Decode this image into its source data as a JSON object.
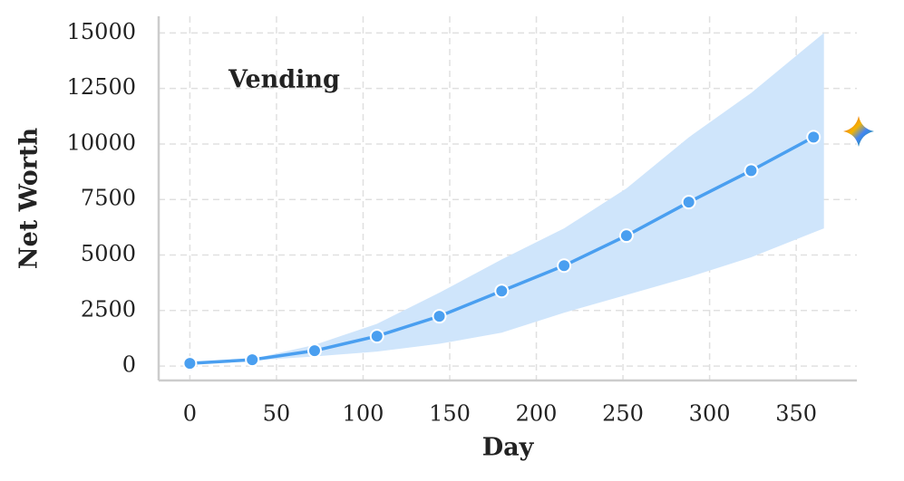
{
  "chart_data": {
    "type": "line",
    "annotation": "Vending",
    "xlabel": "Day",
    "ylabel": "Net Worth",
    "x": [
      0,
      36,
      72,
      108,
      144,
      180,
      216,
      252,
      288,
      324,
      360
    ],
    "series": [
      {
        "color": "#4a9ff0",
        "values": [
          120,
          285,
          690,
          1345,
          2240,
          3380,
          4520,
          5870,
          7380,
          8800,
          10310
        ]
      }
    ],
    "band": {
      "color": "#cfe5fb",
      "x": [
        0,
        36,
        72,
        108,
        144,
        180,
        216,
        252,
        288,
        324,
        366
      ],
      "upper": [
        120,
        320,
        950,
        1900,
        3300,
        4800,
        6200,
        8000,
        10300,
        12300,
        15000
      ],
      "lower": [
        100,
        250,
        430,
        650,
        1000,
        1500,
        2400,
        3200,
        4000,
        4900,
        6200
      ]
    },
    "xlim": [
      -18,
      385
    ],
    "xticks": [
      0,
      50,
      100,
      150,
      200,
      250,
      300,
      350
    ],
    "ylim": [
      -650,
      15750
    ],
    "yticks": [
      0,
      2500,
      5000,
      7500,
      10000,
      12500,
      15000
    ],
    "grid": true
  }
}
